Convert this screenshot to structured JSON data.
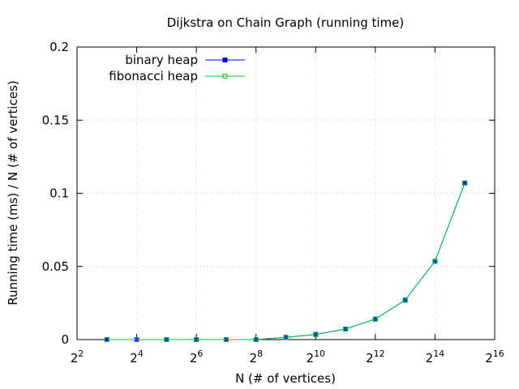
{
  "chart_data": {
    "type": "line",
    "title": "Dijkstra on Chain Graph (running time)",
    "xlabel": "N (# of vertices)",
    "ylabel": "Running time (ms) / N (# of vertices)",
    "x_scale": "log2",
    "xlim": [
      4,
      65536
    ],
    "ylim": [
      0,
      0.2
    ],
    "x_ticks": [
      {
        "base": "2",
        "exp": "2",
        "value": 4
      },
      {
        "base": "2",
        "exp": "4",
        "value": 16
      },
      {
        "base": "2",
        "exp": "6",
        "value": 64
      },
      {
        "base": "2",
        "exp": "8",
        "value": 256
      },
      {
        "base": "2",
        "exp": "10",
        "value": 1024
      },
      {
        "base": "2",
        "exp": "12",
        "value": 4096
      },
      {
        "base": "2",
        "exp": "14",
        "value": 16384
      },
      {
        "base": "2",
        "exp": "16",
        "value": 65536
      }
    ],
    "y_ticks": [
      {
        "label": "0",
        "value": 0
      },
      {
        "label": "0.05",
        "value": 0.05
      },
      {
        "label": "0.1",
        "value": 0.1
      },
      {
        "label": "0.15",
        "value": 0.15
      },
      {
        "label": "0.2",
        "value": 0.2
      }
    ],
    "grid": true,
    "legend_position": "top-left",
    "x": [
      8,
      16,
      32,
      64,
      128,
      256,
      512,
      1024,
      2048,
      4096,
      8192,
      16384,
      32768
    ],
    "series": [
      {
        "name": "binary heap",
        "color": "#0000ff",
        "marker": "filled-square",
        "values": [
          0,
          0,
          0,
          0,
          0,
          0,
          0.0015,
          0.0035,
          0.0072,
          0.014,
          0.027,
          0.0535,
          0.107
        ]
      },
      {
        "name": "fibonacci heap",
        "color": "#00cc33",
        "marker": "open-square",
        "values": [
          0,
          0,
          0,
          0,
          0,
          0,
          0.0015,
          0.0035,
          0.0072,
          0.014,
          0.027,
          0.0535,
          0.107
        ]
      }
    ]
  }
}
